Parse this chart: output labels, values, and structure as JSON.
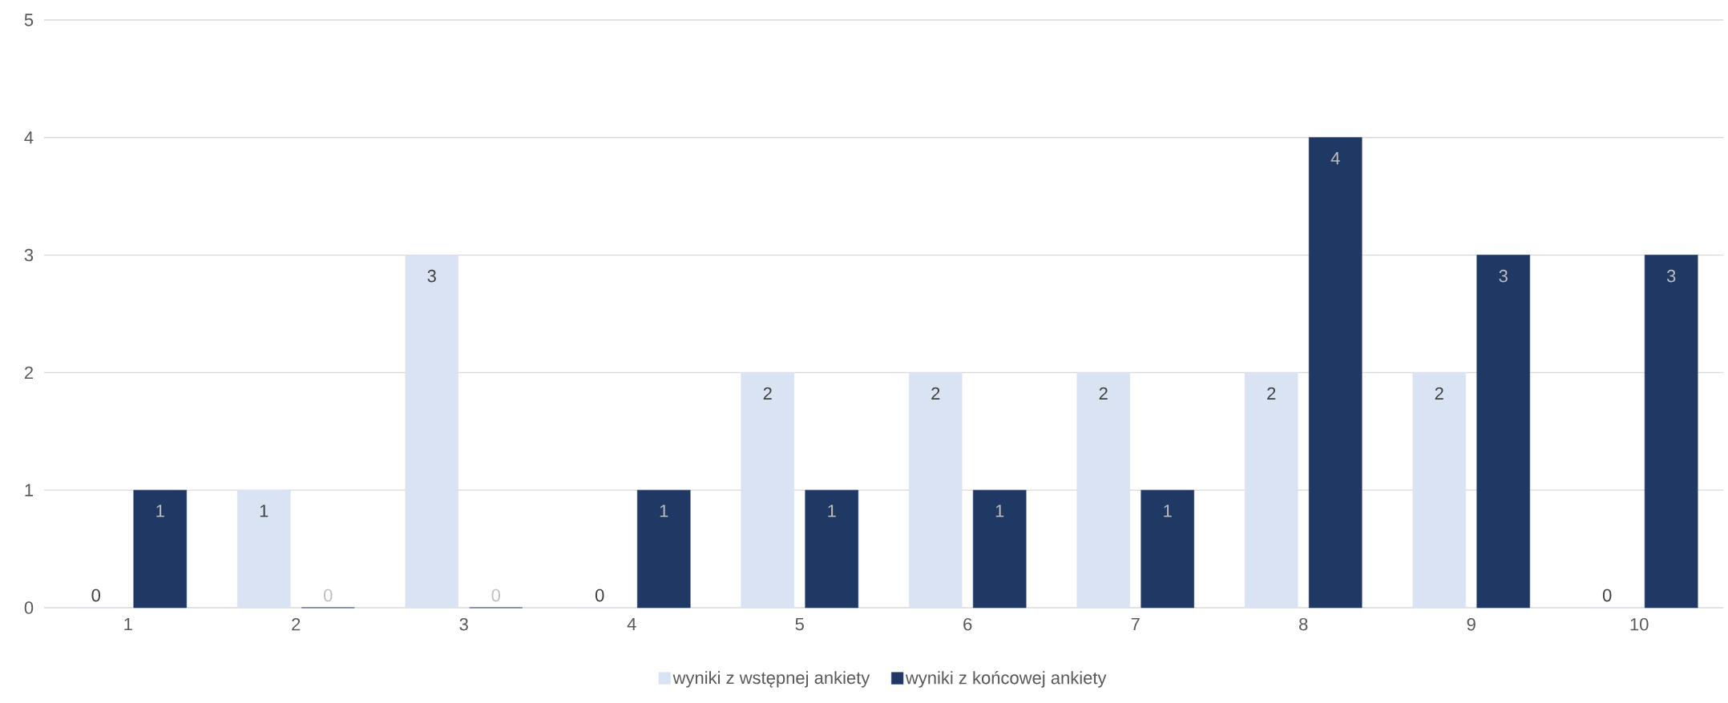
{
  "chart_data": {
    "type": "bar",
    "categories": [
      "1",
      "2",
      "3",
      "4",
      "5",
      "6",
      "7",
      "8",
      "9",
      "10"
    ],
    "series": [
      {
        "name": "wyniki z wstępnej ankiety",
        "color": "#dae3f3",
        "values": [
          0,
          1,
          3,
          0,
          2,
          2,
          2,
          2,
          2,
          0
        ]
      },
      {
        "name": "wyniki z końcowej ankiety",
        "color": "#203864",
        "values": [
          1,
          0,
          0,
          1,
          1,
          1,
          1,
          4,
          3,
          3
        ]
      }
    ],
    "ylim": [
      0,
      5
    ],
    "yticks": [
      0,
      1,
      2,
      3,
      4,
      5
    ],
    "grid": "y",
    "legend": "bottom",
    "data_labels": true
  }
}
